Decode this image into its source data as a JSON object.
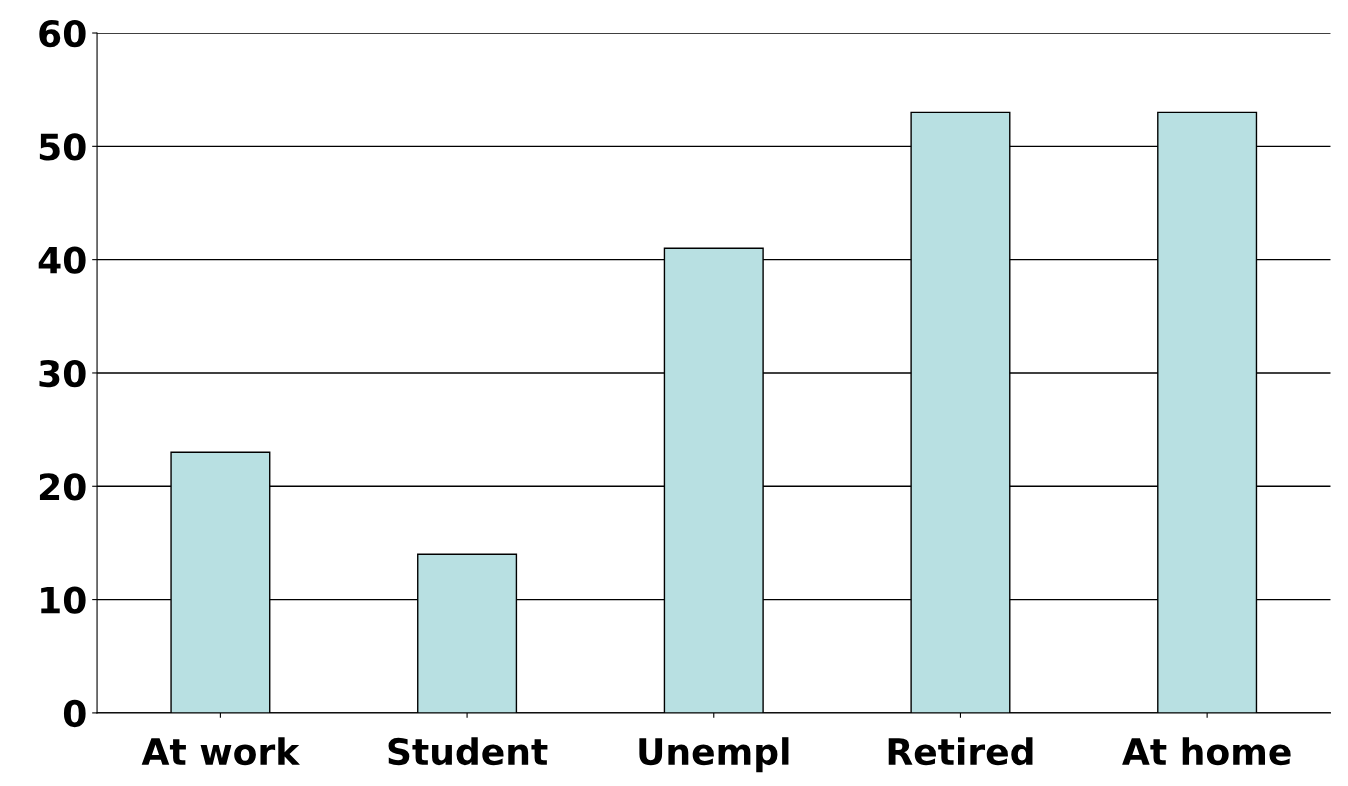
{
  "chart_data": {
    "type": "bar",
    "categories": [
      "At work",
      "Student",
      "Unempl",
      "Retired",
      "At home"
    ],
    "values": [
      23,
      14,
      41,
      53,
      53
    ],
    "color": "#b8e0e2",
    "ylim": [
      0,
      60
    ],
    "yticks": [
      0,
      10,
      20,
      30,
      40,
      50,
      60
    ],
    "grid": "y"
  }
}
